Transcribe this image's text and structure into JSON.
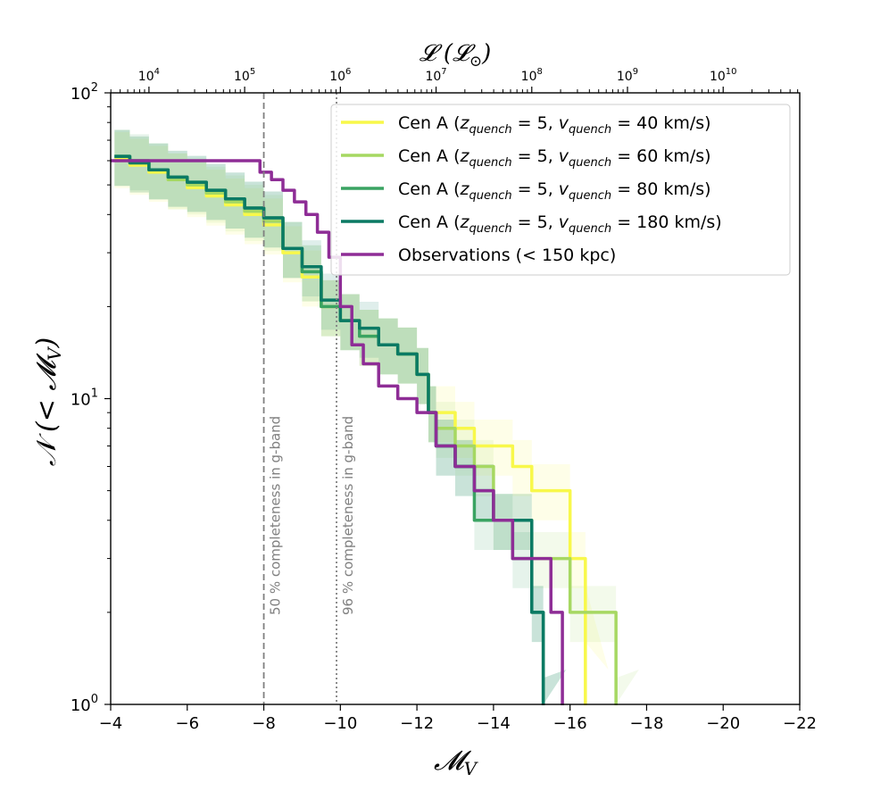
{
  "chart_data": {
    "type": "line",
    "step": true,
    "xlabel": "𝓜",
    "xlabel_sub": "V",
    "ylabel_main": "𝒩 (< 𝓜",
    "ylabel_sub": "V",
    "ylabel_end": ")",
    "top_axis_label": "𝓛 (𝓛",
    "top_axis_sub": "⊙",
    "top_axis_end": ")",
    "xlim": [
      -4,
      -22
    ],
    "ylim": [
      1,
      100
    ],
    "yscale": "log",
    "x_ticks": [
      {
        "value": -4,
        "label": "−4"
      },
      {
        "value": -6,
        "label": "−6"
      },
      {
        "value": -8,
        "label": "−8"
      },
      {
        "value": -10,
        "label": "−10"
      },
      {
        "value": -12,
        "label": "−12"
      },
      {
        "value": -14,
        "label": "−14"
      },
      {
        "value": -16,
        "label": "−16"
      },
      {
        "value": -18,
        "label": "−18"
      },
      {
        "value": -20,
        "label": "−20"
      },
      {
        "value": -22,
        "label": "−22"
      }
    ],
    "y_ticks": [
      {
        "value": 1,
        "base": "10",
        "exp": "0"
      },
      {
        "value": 10,
        "base": "10",
        "exp": "1"
      },
      {
        "value": 100,
        "base": "10",
        "exp": "2"
      }
    ],
    "top_ticks": [
      {
        "value": -5.0,
        "base": "10",
        "exp": "4"
      },
      {
        "value": -7.5,
        "base": "10",
        "exp": "5"
      },
      {
        "value": -10.0,
        "base": "10",
        "exp": "6"
      },
      {
        "value": -12.5,
        "base": "10",
        "exp": "7"
      },
      {
        "value": -15.0,
        "base": "10",
        "exp": "8"
      },
      {
        "value": -17.5,
        "base": "10",
        "exp": "9"
      },
      {
        "value": -20.0,
        "base": "10",
        "exp": "10"
      }
    ],
    "series": [
      {
        "name": "Cen A (z_quench = 5, v_quench = 40 km/s)",
        "color": "#f8f84a",
        "band": true,
        "x": [
          -4.1,
          -4.5,
          -5,
          -5.5,
          -6,
          -6.5,
          -7,
          -7.5,
          -8,
          -8.5,
          -9,
          -9.5,
          -10,
          -10.5,
          -11,
          -11.5,
          -12,
          -12.3,
          -12.5,
          -13,
          -13.5,
          -14,
          -14.5,
          -15,
          -15.5,
          -16,
          -16.4
        ],
        "y": [
          61,
          58,
          55,
          52,
          49,
          46,
          43,
          40,
          37,
          30,
          25,
          20,
          18,
          16,
          15,
          14,
          12,
          9,
          9,
          8,
          7,
          7,
          6,
          5,
          5,
          3,
          2
        ]
      },
      {
        "name": "Cen A (z_quench = 5, v_quench = 60 km/s)",
        "color": "#a6d862",
        "band": true,
        "x": [
          -4.1,
          -4.5,
          -5,
          -5.5,
          -6,
          -6.5,
          -7,
          -7.5,
          -8,
          -8.5,
          -9,
          -9.5,
          -10,
          -10.5,
          -11,
          -11.5,
          -12,
          -12.3,
          -12.5,
          -13,
          -13.5,
          -14,
          -14.5,
          -15,
          -15.5,
          -16,
          -16.5,
          -17,
          -17.2
        ],
        "y": [
          62,
          59,
          56,
          52,
          50,
          47,
          44,
          41,
          38,
          31,
          26,
          20,
          18,
          16,
          15,
          14,
          12,
          9,
          8,
          7,
          6,
          4,
          4,
          3,
          3,
          2,
          2,
          2,
          1
        ]
      },
      {
        "name": "Cen A (z_quench = 5, v_quench = 80 km/s)",
        "color": "#3aa362",
        "band": true,
        "x": [
          -4.1,
          -4.5,
          -5,
          -5.5,
          -6,
          -6.5,
          -7,
          -7.5,
          -8,
          -8.5,
          -9,
          -9.5,
          -10,
          -10.5,
          -11,
          -11.5,
          -12,
          -12.3,
          -12.5,
          -13,
          -13.5,
          -14,
          -14.5,
          -15,
          -15.3
        ],
        "y": [
          62,
          60,
          56,
          53,
          51,
          48,
          45,
          42,
          39,
          31,
          26,
          20,
          18,
          16,
          15,
          14,
          12,
          9,
          7,
          6,
          4,
          4,
          3,
          2,
          1
        ]
      },
      {
        "name": "Cen A (z_quench = 5, v_quench = 180 km/s)",
        "color": "#0b7a64",
        "band": true,
        "x": [
          -4.1,
          -4.5,
          -5,
          -5.5,
          -6,
          -6.5,
          -7,
          -7.5,
          -8,
          -8.5,
          -9,
          -9.5,
          -10,
          -10.5,
          -11,
          -11.5,
          -12,
          -12.3,
          -12.5,
          -13,
          -13.5,
          -14,
          -14.5,
          -15,
          -15.3
        ],
        "y": [
          62,
          59,
          56,
          53,
          51,
          48,
          45,
          42,
          39,
          31,
          27,
          21,
          18,
          17,
          15,
          14,
          12,
          9,
          7,
          6,
          5,
          4,
          4,
          2,
          1
        ]
      },
      {
        "name": "Observations (< 150 kpc)",
        "color": "#8e2d96",
        "band": false,
        "x": [
          -4.0,
          -7.6,
          -7.9,
          -8.2,
          -8.5,
          -8.8,
          -9.1,
          -9.4,
          -9.7,
          -10.0,
          -10.3,
          -10.6,
          -11.0,
          -11.5,
          -12.0,
          -12.5,
          -13.0,
          -13.5,
          -14.0,
          -14.5,
          -15.0,
          -15.5,
          -15.8
        ],
        "y": [
          60,
          60,
          55,
          52,
          48,
          44,
          40,
          35,
          29,
          20,
          15,
          13,
          11,
          10,
          9,
          7,
          6,
          5,
          4,
          3,
          3,
          2,
          1
        ]
      }
    ],
    "legend": {
      "position": "upper-right",
      "entries": [
        {
          "prefix": "Cen A (",
          "z": "z",
          "zsub": "quench",
          "eq1": " = 5, ",
          "v": "v",
          "vsub": "quench",
          "eq2": " = 40 km/s)"
        },
        {
          "prefix": "Cen A (",
          "z": "z",
          "zsub": "quench",
          "eq1": " = 5, ",
          "v": "v",
          "vsub": "quench",
          "eq2": " = 60 km/s)"
        },
        {
          "prefix": "Cen A (",
          "z": "z",
          "zsub": "quench",
          "eq1": " = 5, ",
          "v": "v",
          "vsub": "quench",
          "eq2": " = 80 km/s)"
        },
        {
          "prefix": "Cen A (",
          "z": "z",
          "zsub": "quench",
          "eq1": " = 5, ",
          "v": "v",
          "vsub": "quench",
          "eq2": " = 180 km/s)"
        },
        {
          "plain": "Observations (< 150 kpc)"
        }
      ]
    },
    "vlines": [
      {
        "x": -8.0,
        "style": "dashed",
        "label": "50 % completeness in g-band"
      },
      {
        "x": -9.9,
        "style": "dotted",
        "label": "96 % completeness in g-band"
      }
    ]
  }
}
